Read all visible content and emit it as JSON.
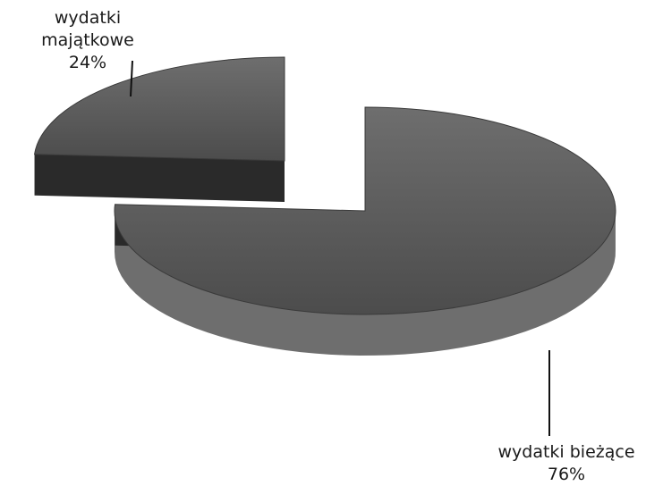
{
  "chart_data": {
    "type": "pie",
    "style": "3d-exploded",
    "slices": [
      {
        "label": "wydatki majątkowe",
        "value": 24,
        "value_label": "24%",
        "color": "#3a3a3a"
      },
      {
        "label": "wydatki bieżące",
        "value": 76,
        "value_label": "76%",
        "color": "#555555"
      }
    ]
  }
}
